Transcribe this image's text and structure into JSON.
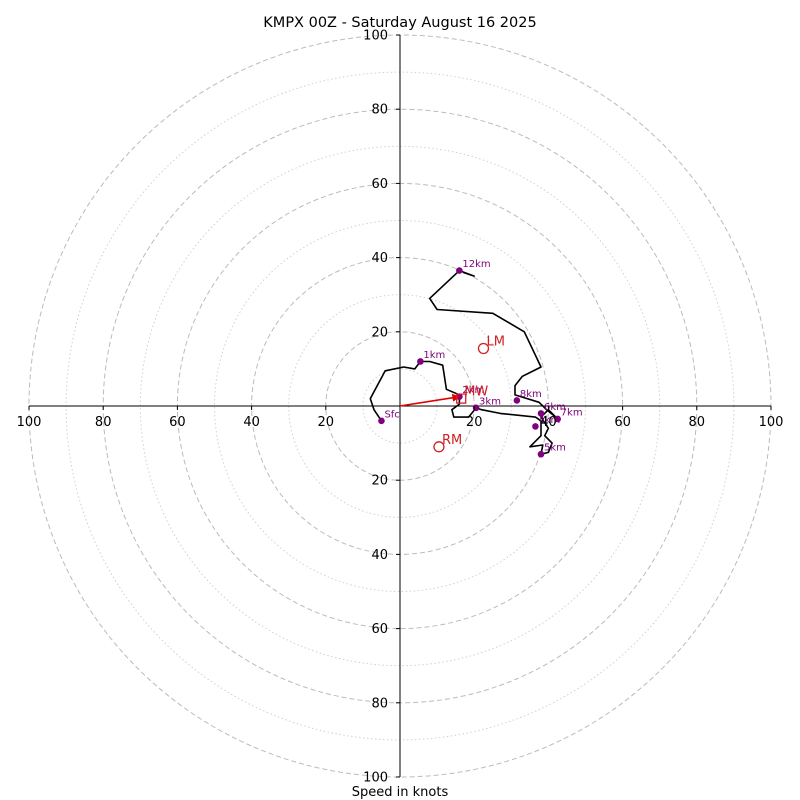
{
  "chart_data": {
    "type": "hodograph",
    "title": "KMPX 00Z - Saturday August 16 2025",
    "xlabel": "Speed in knots",
    "xlim": [
      -100,
      100
    ],
    "ylim": [
      -100,
      100
    ],
    "grid": true,
    "rings_major": [
      20,
      40,
      60,
      80,
      100
    ],
    "rings_minor": [
      10,
      30,
      50,
      70,
      90
    ],
    "x_ticks": [
      {
        "value": -100,
        "label": "100"
      },
      {
        "value": -80,
        "label": "80"
      },
      {
        "value": -60,
        "label": "60"
      },
      {
        "value": -40,
        "label": "40"
      },
      {
        "value": -20,
        "label": "20"
      },
      {
        "value": 20,
        "label": "20"
      },
      {
        "value": 40,
        "label": "40"
      },
      {
        "value": 60,
        "label": "60"
      },
      {
        "value": 80,
        "label": "80"
      },
      {
        "value": 100,
        "label": "100"
      }
    ],
    "y_ticks": [
      {
        "value": 100,
        "label": "100"
      },
      {
        "value": 80,
        "label": "80"
      },
      {
        "value": 60,
        "label": "60"
      },
      {
        "value": 40,
        "label": "40"
      },
      {
        "value": 20,
        "label": "20"
      },
      {
        "value": -20,
        "label": "20"
      },
      {
        "value": -40,
        "label": "40"
      },
      {
        "value": -60,
        "label": "60"
      },
      {
        "value": -80,
        "label": "80"
      },
      {
        "value": -100,
        "label": "100"
      }
    ],
    "trace": {
      "color": "#000000",
      "points": [
        [
          -5,
          -4
        ],
        [
          -7,
          -1
        ],
        [
          -8,
          2
        ],
        [
          -4,
          9.5
        ],
        [
          1,
          10.5
        ],
        [
          4,
          10
        ],
        [
          5.5,
          12
        ],
        [
          8,
          12
        ],
        [
          11.5,
          11
        ],
        [
          12.5,
          4.5
        ],
        [
          16,
          3
        ],
        [
          16,
          0.5
        ],
        [
          14,
          -1
        ],
        [
          14.5,
          -3
        ],
        [
          18.5,
          -3
        ],
        [
          20.5,
          -0.5
        ],
        [
          22,
          -1
        ],
        [
          27,
          -2
        ],
        [
          36.5,
          -3
        ],
        [
          38,
          -4
        ],
        [
          38,
          -8
        ],
        [
          35,
          -11
        ],
        [
          38.5,
          -10.5
        ],
        [
          38,
          -13
        ],
        [
          40,
          -12.5
        ],
        [
          41,
          -10
        ],
        [
          39,
          -8
        ],
        [
          40,
          -6
        ],
        [
          38,
          -3
        ],
        [
          40,
          -1
        ],
        [
          42,
          -3
        ],
        [
          39.5,
          -1
        ],
        [
          37.5,
          1
        ],
        [
          31,
          3
        ],
        [
          31,
          5.5
        ],
        [
          33,
          8
        ],
        [
          37,
          10
        ],
        [
          38,
          10.5
        ],
        [
          33.5,
          20
        ],
        [
          25,
          25
        ],
        [
          10,
          26
        ],
        [
          8,
          29
        ],
        [
          16,
          36.5
        ],
        [
          20,
          35
        ],
        [
          17,
          36
        ]
      ]
    },
    "heights": [
      {
        "label": "Sfc",
        "u": -5,
        "v": -4
      },
      {
        "label": "1km",
        "u": 5.5,
        "v": 12
      },
      {
        "label": "2km",
        "u": 16,
        "v": 2.5
      },
      {
        "label": "3km",
        "u": 20.5,
        "v": -0.5
      },
      {
        "label": "4km",
        "u": 36.5,
        "v": -5.5
      },
      {
        "label": "5km",
        "u": 38,
        "v": -13
      },
      {
        "label": "6km",
        "u": 38,
        "v": -2
      },
      {
        "label": "7km",
        "u": 42.5,
        "v": -3.5
      },
      {
        "label": "8km",
        "u": 31.5,
        "v": 1.5
      },
      {
        "label": "12km",
        "u": 16,
        "v": 36.5
      }
    ],
    "motions": [
      {
        "label": "LM",
        "u": 22.5,
        "v": 15.5,
        "marker": "circle"
      },
      {
        "label": "RM",
        "u": 10.5,
        "v": -11,
        "marker": "circle"
      },
      {
        "label": "MW",
        "u": 16.5,
        "v": 2,
        "marker": "square"
      }
    ],
    "shear_arrow": {
      "from": [
        0,
        0
      ],
      "to": [
        16,
        2.5
      ],
      "color": "#e00000"
    },
    "colors": {
      "grid": "#bbbbbb",
      "trace": "#000000",
      "height_marker": "#800080",
      "motion_marker": "#d02020",
      "arrow": "#e00000"
    }
  }
}
